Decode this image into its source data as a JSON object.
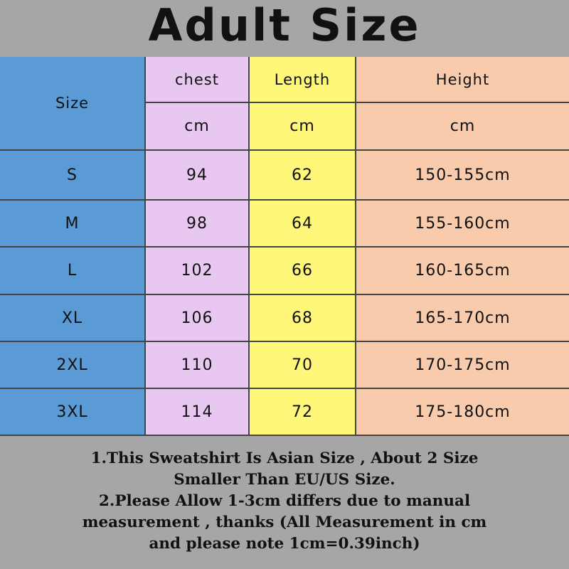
{
  "title": "Adult Size",
  "colors": {
    "background": "#a6a6a6",
    "size_col": "#5b9bd5",
    "chest_col": "#e8c8f0",
    "length_col": "#fff77a",
    "height_col": "#f8cbad"
  },
  "table": {
    "headers": [
      "Size",
      "chest",
      "Length",
      "Height"
    ],
    "units": [
      "cm",
      "cm",
      "cm"
    ],
    "rows": [
      [
        "S",
        "94",
        "62",
        "150-155cm"
      ],
      [
        "M",
        "98",
        "64",
        "155-160cm"
      ],
      [
        "L",
        "102",
        "66",
        "160-165cm"
      ],
      [
        "XL",
        "106",
        "68",
        "165-170cm"
      ],
      [
        "2XL",
        "110",
        "70",
        "170-175cm"
      ],
      [
        "3XL",
        "114",
        "72",
        "175-180cm"
      ]
    ]
  },
  "notes": [
    "1.This Sweatshirt Is Asian Size , About 2 Size",
    "Smaller Than EU/US Size.",
    "2.Please Allow 1-3cm differs due to manual",
    "measurement , thanks (All Measurement in cm",
    "and please note 1cm=0.39inch)"
  ]
}
